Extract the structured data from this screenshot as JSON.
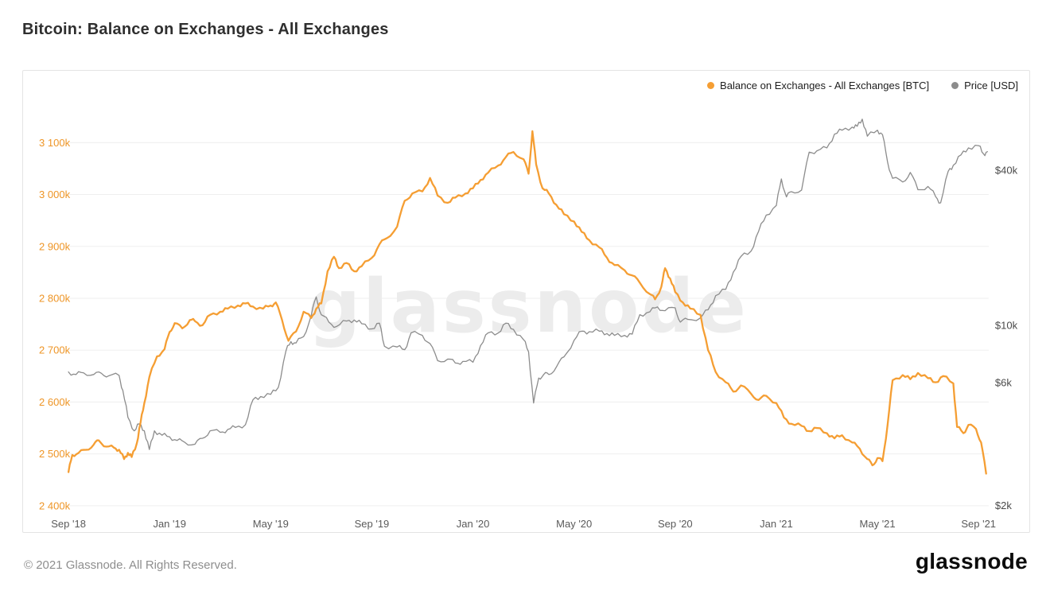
{
  "page": {
    "title": "Bitcoin: Balance on Exchanges - All Exchanges",
    "footer_copyright": "© 2021 Glassnode. All Rights Reserved.",
    "footer_logo": "glassnode",
    "watermark": "glassnode"
  },
  "legend": [
    {
      "label": "Balance on Exchanges - All Exchanges [BTC]",
      "color": "#f59e33"
    },
    {
      "label": "Price [USD]",
      "color": "#8c8c8c"
    }
  ],
  "chart_data": {
    "type": "line",
    "title": "Bitcoin: Balance on Exchanges - All Exchanges",
    "grid": "horizontal",
    "legend_position": "top-right",
    "watermark": "glassnode",
    "x_unit": "months since Sep 2018",
    "x_range": [
      0,
      36.4
    ],
    "x_ticks": [
      {
        "label": "Sep '18",
        "t": 0
      },
      {
        "label": "Jan '19",
        "t": 4
      },
      {
        "label": "May '19",
        "t": 8
      },
      {
        "label": "Sep '19",
        "t": 12
      },
      {
        "label": "Jan '20",
        "t": 16
      },
      {
        "label": "May '20",
        "t": 20
      },
      {
        "label": "Sep '20",
        "t": 24
      },
      {
        "label": "Jan '21",
        "t": 28
      },
      {
        "label": "May '21",
        "t": 32
      },
      {
        "label": "Sep '21",
        "t": 36
      }
    ],
    "left_axis": {
      "unit": "thousand BTC",
      "scale": "linear",
      "color": "#ee9526",
      "range": [
        2395,
        3150
      ],
      "ticks": [
        {
          "label": "3 100k",
          "value": 3100
        },
        {
          "label": "3 000k",
          "value": 3000
        },
        {
          "label": "2 900k",
          "value": 2900
        },
        {
          "label": "2 800k",
          "value": 2800
        },
        {
          "label": "2 700k",
          "value": 2700
        },
        {
          "label": "2 600k",
          "value": 2600
        },
        {
          "label": "2 500k",
          "value": 2500
        },
        {
          "label": "2 400k",
          "value": 2400
        }
      ]
    },
    "right_axis": {
      "unit": "USD",
      "scale": "log",
      "color": "#4a4a4a",
      "ticks": [
        {
          "label": "$40k",
          "value": 40000
        },
        {
          "label": "$10k",
          "value": 10000
        },
        {
          "label": "$6k",
          "value": 6000
        },
        {
          "label": "$2k",
          "value": 2000
        }
      ]
    },
    "series": [
      {
        "name": "Balance on Exchanges - All Exchanges [BTC]",
        "axis": "left",
        "unit": "thousand BTC",
        "color": "#f59e33",
        "points": [
          [
            0,
            2465
          ],
          [
            0.15,
            2498
          ],
          [
            0.4,
            2502
          ],
          [
            0.7,
            2508
          ],
          [
            1,
            2518
          ],
          [
            1.2,
            2526
          ],
          [
            1.5,
            2514
          ],
          [
            1.8,
            2512
          ],
          [
            2,
            2508
          ],
          [
            2.2,
            2490
          ],
          [
            2.35,
            2502
          ],
          [
            2.5,
            2494
          ],
          [
            2.7,
            2520
          ],
          [
            2.85,
            2560
          ],
          [
            3,
            2598
          ],
          [
            3.2,
            2648
          ],
          [
            3.5,
            2688
          ],
          [
            3.8,
            2702
          ],
          [
            4,
            2735
          ],
          [
            4.2,
            2752
          ],
          [
            4.5,
            2742
          ],
          [
            4.8,
            2758
          ],
          [
            5,
            2756
          ],
          [
            5.3,
            2748
          ],
          [
            5.6,
            2768
          ],
          [
            6,
            2774
          ],
          [
            6.3,
            2780
          ],
          [
            6.7,
            2786
          ],
          [
            7,
            2790
          ],
          [
            7.3,
            2784
          ],
          [
            7.7,
            2780
          ],
          [
            8,
            2786
          ],
          [
            8.2,
            2792
          ],
          [
            8.45,
            2758
          ],
          [
            8.7,
            2718
          ],
          [
            9,
            2736
          ],
          [
            9.3,
            2774
          ],
          [
            9.6,
            2762
          ],
          [
            9.8,
            2780
          ],
          [
            10,
            2790
          ],
          [
            10.25,
            2852
          ],
          [
            10.5,
            2880
          ],
          [
            10.7,
            2858
          ],
          [
            11,
            2868
          ],
          [
            11.3,
            2852
          ],
          [
            11.6,
            2862
          ],
          [
            12,
            2878
          ],
          [
            12.3,
            2904
          ],
          [
            12.6,
            2916
          ],
          [
            13,
            2938
          ],
          [
            13.3,
            2988
          ],
          [
            13.6,
            3002
          ],
          [
            14,
            3006
          ],
          [
            14.3,
            3032
          ],
          [
            14.6,
            2998
          ],
          [
            15,
            2984
          ],
          [
            15.3,
            2994
          ],
          [
            15.7,
            3002
          ],
          [
            16,
            3012
          ],
          [
            16.3,
            3028
          ],
          [
            16.6,
            3042
          ],
          [
            17,
            3056
          ],
          [
            17.3,
            3072
          ],
          [
            17.6,
            3082
          ],
          [
            18,
            3068
          ],
          [
            18.2,
            3040
          ],
          [
            18.35,
            3122
          ],
          [
            18.5,
            3058
          ],
          [
            18.75,
            3012
          ],
          [
            19,
            3002
          ],
          [
            19.3,
            2980
          ],
          [
            19.6,
            2962
          ],
          [
            20,
            2948
          ],
          [
            20.3,
            2928
          ],
          [
            20.6,
            2912
          ],
          [
            21,
            2898
          ],
          [
            21.3,
            2878
          ],
          [
            21.6,
            2864
          ],
          [
            22,
            2854
          ],
          [
            22.3,
            2844
          ],
          [
            22.6,
            2830
          ],
          [
            23,
            2808
          ],
          [
            23.2,
            2798
          ],
          [
            23.45,
            2822
          ],
          [
            23.6,
            2858
          ],
          [
            23.8,
            2838
          ],
          [
            24,
            2812
          ],
          [
            24.3,
            2792
          ],
          [
            24.6,
            2780
          ],
          [
            25,
            2768
          ],
          [
            25.3,
            2700
          ],
          [
            25.6,
            2658
          ],
          [
            26,
            2638
          ],
          [
            26.3,
            2620
          ],
          [
            26.6,
            2632
          ],
          [
            27,
            2616
          ],
          [
            27.3,
            2604
          ],
          [
            27.6,
            2612
          ],
          [
            28,
            2598
          ],
          [
            28.3,
            2570
          ],
          [
            28.6,
            2558
          ],
          [
            29,
            2554
          ],
          [
            29.3,
            2544
          ],
          [
            29.6,
            2550
          ],
          [
            30,
            2540
          ],
          [
            30.3,
            2530
          ],
          [
            30.6,
            2536
          ],
          [
            31,
            2522
          ],
          [
            31.3,
            2510
          ],
          [
            31.6,
            2490
          ],
          [
            31.8,
            2478
          ],
          [
            32,
            2492
          ],
          [
            32.2,
            2486
          ],
          [
            32.4,
            2556
          ],
          [
            32.6,
            2642
          ],
          [
            33,
            2652
          ],
          [
            33.3,
            2644
          ],
          [
            33.6,
            2656
          ],
          [
            34,
            2646
          ],
          [
            34.3,
            2638
          ],
          [
            34.6,
            2650
          ],
          [
            35,
            2636
          ],
          [
            35.15,
            2552
          ],
          [
            35.4,
            2540
          ],
          [
            35.6,
            2556
          ],
          [
            35.9,
            2548
          ],
          [
            36.1,
            2522
          ],
          [
            36.3,
            2462
          ]
        ]
      },
      {
        "name": "Price [USD]",
        "axis": "right",
        "unit": "USD",
        "color": "#8c8c8c",
        "points": [
          [
            0,
            6600
          ],
          [
            0.3,
            6450
          ],
          [
            0.6,
            6550
          ],
          [
            1,
            6450
          ],
          [
            1.3,
            6520
          ],
          [
            1.6,
            6380
          ],
          [
            2,
            6400
          ],
          [
            2.15,
            5600
          ],
          [
            2.35,
            4400
          ],
          [
            2.6,
            3900
          ],
          [
            2.8,
            4150
          ],
          [
            3,
            3900
          ],
          [
            3.2,
            3300
          ],
          [
            3.4,
            3900
          ],
          [
            3.7,
            3750
          ],
          [
            4,
            3700
          ],
          [
            4.3,
            3580
          ],
          [
            4.6,
            3520
          ],
          [
            5,
            3460
          ],
          [
            5.3,
            3650
          ],
          [
            5.6,
            3900
          ],
          [
            6,
            3850
          ],
          [
            6.3,
            3950
          ],
          [
            6.6,
            4020
          ],
          [
            7,
            4120
          ],
          [
            7.3,
            5150
          ],
          [
            7.6,
            5300
          ],
          [
            8,
            5400
          ],
          [
            8.3,
            5750
          ],
          [
            8.6,
            7950
          ],
          [
            8.8,
            8650
          ],
          [
            9,
            8550
          ],
          [
            9.3,
            9050
          ],
          [
            9.6,
            10900
          ],
          [
            9.8,
            12900
          ],
          [
            10,
            11000
          ],
          [
            10.3,
            10300
          ],
          [
            10.6,
            9900
          ],
          [
            11,
            10400
          ],
          [
            11.3,
            10500
          ],
          [
            11.6,
            10150
          ],
          [
            12,
            9700
          ],
          [
            12.3,
            10200
          ],
          [
            12.5,
            8300
          ],
          [
            13,
            8250
          ],
          [
            13.3,
            8050
          ],
          [
            13.55,
            9350
          ],
          [
            14,
            9150
          ],
          [
            14.3,
            8500
          ],
          [
            14.6,
            7300
          ],
          [
            15,
            7400
          ],
          [
            15.3,
            7150
          ],
          [
            15.6,
            7250
          ],
          [
            16,
            7200
          ],
          [
            16.3,
            8350
          ],
          [
            16.6,
            9350
          ],
          [
            17,
            9350
          ],
          [
            17.3,
            10200
          ],
          [
            17.6,
            9650
          ],
          [
            18,
            8800
          ],
          [
            18.2,
            7900
          ],
          [
            18.4,
            5000
          ],
          [
            18.6,
            6250
          ],
          [
            18.8,
            6450
          ],
          [
            19,
            6450
          ],
          [
            19.3,
            6900
          ],
          [
            19.6,
            7550
          ],
          [
            20,
            8750
          ],
          [
            20.3,
            9500
          ],
          [
            20.6,
            9450
          ],
          [
            21,
            9500
          ],
          [
            21.3,
            9300
          ],
          [
            21.6,
            9150
          ],
          [
            22,
            9150
          ],
          [
            22.3,
            9250
          ],
          [
            22.6,
            11000
          ],
          [
            23,
            11300
          ],
          [
            23.3,
            11800
          ],
          [
            23.6,
            11400
          ],
          [
            24,
            11700
          ],
          [
            24.2,
            10300
          ],
          [
            24.5,
            10550
          ],
          [
            25,
            10700
          ],
          [
            25.3,
            11500
          ],
          [
            25.6,
            13050
          ],
          [
            26,
            13800
          ],
          [
            26.3,
            16100
          ],
          [
            26.6,
            18500
          ],
          [
            27,
            19400
          ],
          [
            27.3,
            23200
          ],
          [
            27.6,
            26800
          ],
          [
            28,
            29200
          ],
          [
            28.2,
            37000
          ],
          [
            28.4,
            31500
          ],
          [
            28.6,
            33000
          ],
          [
            29,
            33500
          ],
          [
            29.3,
            47000
          ],
          [
            29.6,
            47500
          ],
          [
            30,
            48800
          ],
          [
            30.3,
            55200
          ],
          [
            30.6,
            57200
          ],
          [
            31,
            58800
          ],
          [
            31.2,
            59200
          ],
          [
            31.4,
            63100
          ],
          [
            31.6,
            54200
          ],
          [
            32,
            57200
          ],
          [
            32.2,
            55000
          ],
          [
            32.4,
            43000
          ],
          [
            32.6,
            37200
          ],
          [
            33,
            36000
          ],
          [
            33.3,
            39200
          ],
          [
            33.6,
            33600
          ],
          [
            34,
            34600
          ],
          [
            34.3,
            31600
          ],
          [
            34.5,
            29900
          ],
          [
            34.8,
            39600
          ],
          [
            35,
            41800
          ],
          [
            35.3,
            45800
          ],
          [
            35.6,
            48800
          ],
          [
            36,
            49800
          ],
          [
            36.2,
            46200
          ],
          [
            36.35,
            47200
          ]
        ]
      }
    ]
  }
}
